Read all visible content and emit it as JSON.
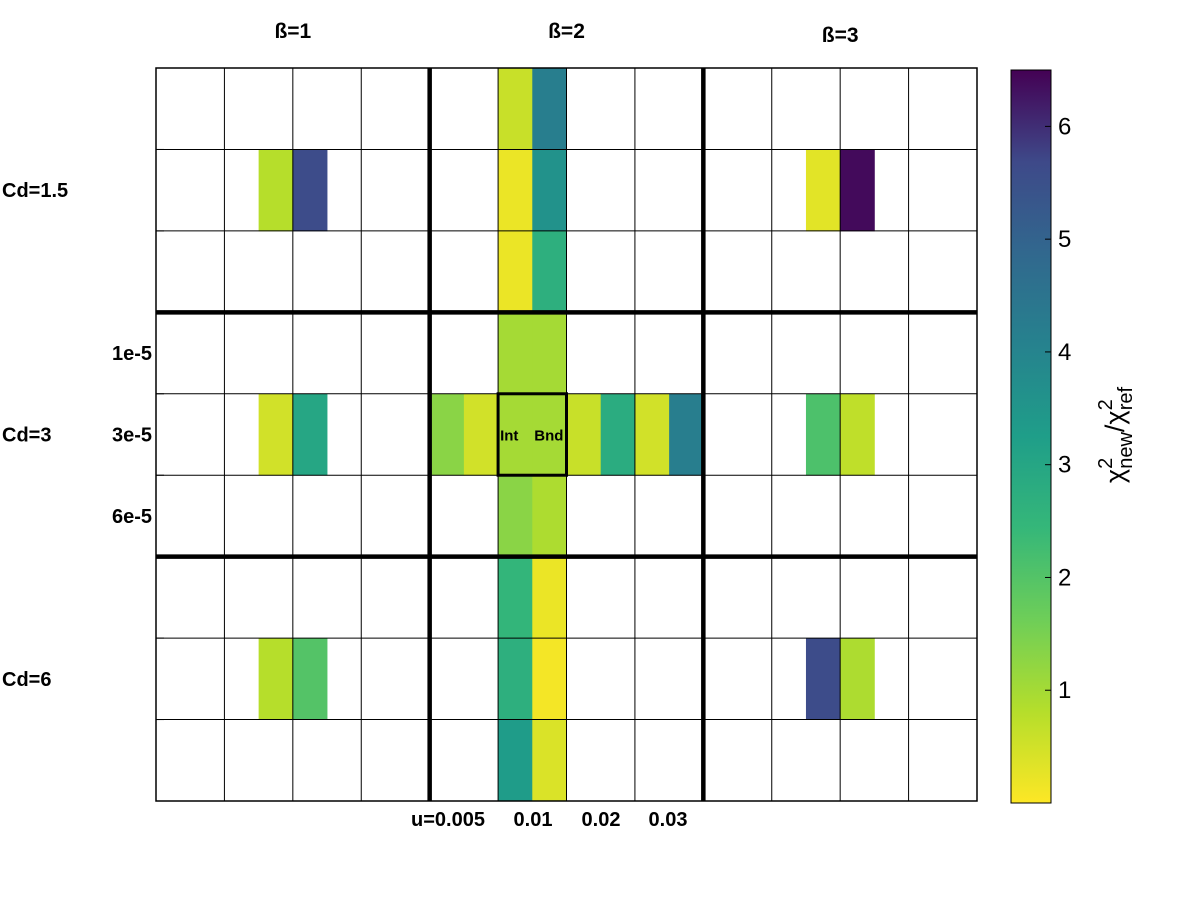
{
  "chart_data": {
    "type": "heatmap",
    "beta_labels": [
      "ß=1",
      "ß=2",
      "ß=3"
    ],
    "cd_labels": [
      "Cd=1.5",
      "Cd=3",
      "Cd=6"
    ],
    "s_labels": [
      "1e-5",
      "3e-5",
      "6e-5"
    ],
    "u_labels": [
      "u=0.005",
      "0.01",
      "0.02",
      "0.03"
    ],
    "cell_labels": [
      "Int",
      "Bnd"
    ],
    "colorbar": {
      "min": 0,
      "max": 6.5,
      "ticks": [
        1,
        2,
        3,
        4,
        5,
        6
      ],
      "label_parts": [
        "χ",
        "2",
        "new",
        "/χ",
        "2",
        "ref"
      ]
    },
    "cells": [
      {
        "row": 0,
        "col": 10,
        "value": 0.6
      },
      {
        "row": 0,
        "col": 11,
        "value": 4.2
      },
      {
        "row": 1,
        "col": 3,
        "value": 0.8
      },
      {
        "row": 1,
        "col": 4,
        "value": 5.6
      },
      {
        "row": 1,
        "col": 10,
        "value": 0.2
      },
      {
        "row": 1,
        "col": 11,
        "value": 3.6
      },
      {
        "row": 1,
        "col": 19,
        "value": 0.3
      },
      {
        "row": 1,
        "col": 20,
        "value": 6.4
      },
      {
        "row": 2,
        "col": 10,
        "value": 0.2
      },
      {
        "row": 2,
        "col": 11,
        "value": 2.7
      },
      {
        "row": 3,
        "col": 10,
        "value": 1.0
      },
      {
        "row": 3,
        "col": 11,
        "value": 1.0
      },
      {
        "row": 4,
        "col": 3,
        "value": 0.5
      },
      {
        "row": 4,
        "col": 4,
        "value": 3.0
      },
      {
        "row": 4,
        "col": 8,
        "value": 1.3
      },
      {
        "row": 4,
        "col": 9,
        "value": 0.5
      },
      {
        "row": 4,
        "col": 10,
        "value": 1.0
      },
      {
        "row": 4,
        "col": 11,
        "value": 1.0
      },
      {
        "row": 4,
        "col": 12,
        "value": 0.6
      },
      {
        "row": 4,
        "col": 13,
        "value": 2.8
      },
      {
        "row": 4,
        "col": 14,
        "value": 0.5
      },
      {
        "row": 4,
        "col": 15,
        "value": 4.2
      },
      {
        "row": 4,
        "col": 19,
        "value": 2.1
      },
      {
        "row": 4,
        "col": 20,
        "value": 0.7
      },
      {
        "row": 5,
        "col": 10,
        "value": 1.3
      },
      {
        "row": 5,
        "col": 11,
        "value": 0.9
      },
      {
        "row": 6,
        "col": 10,
        "value": 2.5
      },
      {
        "row": 6,
        "col": 11,
        "value": 0.2
      },
      {
        "row": 7,
        "col": 3,
        "value": 0.8
      },
      {
        "row": 7,
        "col": 4,
        "value": 2.0
      },
      {
        "row": 7,
        "col": 10,
        "value": 2.7
      },
      {
        "row": 7,
        "col": 11,
        "value": 0.1
      },
      {
        "row": 7,
        "col": 19,
        "value": 5.6
      },
      {
        "row": 7,
        "col": 20,
        "value": 0.9
      },
      {
        "row": 8,
        "col": 10,
        "value": 3.3
      },
      {
        "row": 8,
        "col": 11,
        "value": 0.4
      }
    ]
  }
}
